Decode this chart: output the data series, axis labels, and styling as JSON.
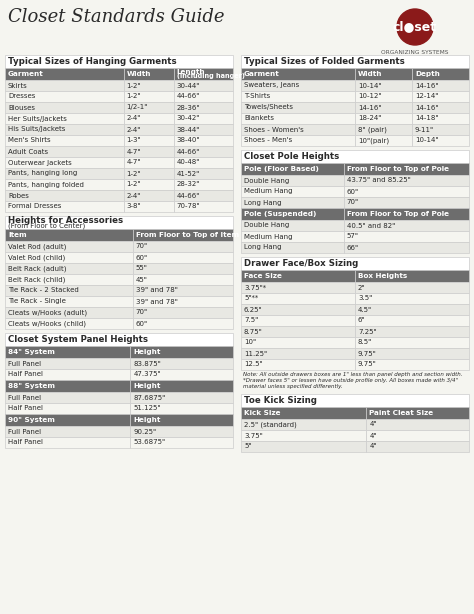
{
  "title": "Closet Standards Guide",
  "logo_sub": "ORGANIZING SYSTEMS",
  "bg_color": "#f5f5f0",
  "header_color": "#6d6d6d",
  "row_even": "#e8e8e3",
  "row_odd": "#f5f5f0",
  "border_color": "#cccccc",
  "hanging_garments": {
    "title": "Typical Sizes of Hanging Garments",
    "headers": [
      "Garment",
      "Width",
      "Length\n(including hanger)"
    ],
    "rows": [
      [
        "Skirts",
        "1-2\"",
        "30-44\""
      ],
      [
        "Dresses",
        "1-2\"",
        "44-66\""
      ],
      [
        "Blouses",
        "1/2-1\"",
        "28-36\""
      ],
      [
        "Her Suits/Jackets",
        "2-4\"",
        "30-42\""
      ],
      [
        "His Suits/Jackets",
        "2-4\"",
        "38-44\""
      ],
      [
        "Men's Shirts",
        "1-3\"",
        "38-40\""
      ],
      [
        "Adult Coats",
        "4-7\"",
        "44-66\""
      ],
      [
        "Outerwear Jackets",
        "4-7\"",
        "40-48\""
      ],
      [
        "Pants, hanging long",
        "1-2\"",
        "41-52\""
      ],
      [
        "Pants, hanging folded",
        "1-2\"",
        "28-32\""
      ],
      [
        "Robes",
        "2-4\"",
        "44-66\""
      ],
      [
        "Formal Dresses",
        "3-8\"",
        "70-78\""
      ]
    ]
  },
  "folded_garments": {
    "title": "Typical Sizes of Folded Garments",
    "headers": [
      "Garment",
      "Width",
      "Depth"
    ],
    "rows": [
      [
        "Sweaters, Jeans",
        "10-14\"",
        "14-16\""
      ],
      [
        "T-Shirts",
        "10-12\"",
        "12-14\""
      ],
      [
        "Towels/Sheets",
        "14-16\"",
        "14-16\""
      ],
      [
        "Blankets",
        "18-24\"",
        "14-18\""
      ],
      [
        "Shoes - Women's",
        "8\" (pair)",
        "9-11\""
      ],
      [
        "Shoes - Men's",
        "10\"(pair)",
        "10-14\""
      ]
    ]
  },
  "pole_heights": {
    "title": "Closet Pole Heights",
    "sections": [
      {
        "header": [
          "Pole (Floor Based)",
          "From Floor to Top of Pole"
        ],
        "rows": [
          [
            "Double Hang",
            "43.75\" and 85.25\""
          ],
          [
            "Medium Hang",
            "60\""
          ],
          [
            "Long Hang",
            "70\""
          ]
        ]
      },
      {
        "header": [
          "Pole (Suspended)",
          "From Floor to Top of Pole"
        ],
        "rows": [
          [
            "Double Hang",
            "40.5\" and 82\""
          ],
          [
            "Medium Hang",
            "57\""
          ],
          [
            "Long Hang",
            "66\""
          ]
        ]
      }
    ]
  },
  "accessories": {
    "title": "Heights for Accessories",
    "subtitle": "(From Floor to Center)",
    "headers": [
      "Item",
      "From Floor to Top of Item"
    ],
    "rows": [
      [
        "Valet Rod (adult)",
        "70\""
      ],
      [
        "Valet Rod (child)",
        "60\""
      ],
      [
        "Belt Rack (adult)",
        "55\""
      ],
      [
        "Belt Rack (child)",
        "45\""
      ],
      [
        "Tie Rack - 2 Stacked",
        "39\" and 78\""
      ],
      [
        "Tie Rack - Single",
        "39\" and 78\""
      ],
      [
        "Cleats w/Hooks (adult)",
        "70\""
      ],
      [
        "Cleats w/Hooks (child)",
        "60\""
      ]
    ]
  },
  "drawer_sizing": {
    "title": "Drawer Face/Box Sizing",
    "headers": [
      "Face Size",
      "Box Heights"
    ],
    "rows": [
      [
        "3.75\"*",
        "2\""
      ],
      [
        "5\"**",
        "3.5\""
      ],
      [
        "6.25\"",
        "4.5\""
      ],
      [
        "7.5\"",
        "6\""
      ],
      [
        "8.75\"",
        "7.25\""
      ],
      [
        "10\"",
        "8.5\""
      ],
      [
        "11.25\"",
        "9.75\""
      ],
      [
        "12.5\"",
        "9.75\""
      ]
    ],
    "note": "Note: All outside drawers boxes are 1\" less than panel depth and section width. *Drawer faces 5\" or lessen have outside profile only. All boxes made with 3/4\" material unless specified differently."
  },
  "panel_heights": {
    "title": "Closet System Panel Heights",
    "sections": [
      {
        "header": "84\" System",
        "col2": "Height",
        "rows": [
          [
            "Full Panel",
            "83.875\""
          ],
          [
            "Half Panel",
            "47.375\""
          ]
        ]
      },
      {
        "header": "88\" System",
        "col2": "Height",
        "rows": [
          [
            "Full Panel",
            "87.6875\""
          ],
          [
            "Half Panel",
            "51.125\""
          ]
        ]
      },
      {
        "header": "90\" System",
        "col2": "Height",
        "rows": [
          [
            "Full Panel",
            "90.25\""
          ],
          [
            "Half Panel",
            "53.6875\""
          ]
        ]
      }
    ]
  },
  "toe_kick": {
    "title": "Toe Kick Sizing",
    "headers": [
      "Kick Size",
      "Paint Cleat Size"
    ],
    "rows": [
      [
        "2.5\" (standard)",
        "4\""
      ],
      [
        "3.75\"",
        "4\""
      ],
      [
        "5\"",
        "4\""
      ]
    ]
  }
}
